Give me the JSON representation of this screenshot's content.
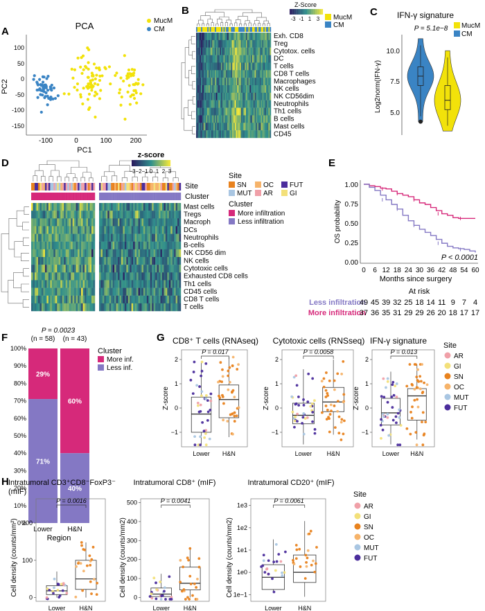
{
  "palette": {
    "mucm": "#f2e20a",
    "cm": "#3a84c4",
    "more_inf": "#d6297a",
    "less_inf": "#8478c4",
    "sites": {
      "AR": "#f0a0a8",
      "GI": "#f3e07a",
      "SN": "#e8821e",
      "OC": "#f6b36a",
      "MUT": "#a9c6e2",
      "FUT": "#4b2d9c"
    },
    "heat_low": "#2a1a5e",
    "heat_mid": "#2f8f8c",
    "heat_high": "#f2e63a"
  },
  "panels": {
    "A": {
      "letter": "A",
      "title": "PCA",
      "xlabel": "PC1",
      "ylabel": "PC2",
      "xticks": [
        "-100",
        "0",
        "100",
        "200"
      ],
      "yticks": [
        "100",
        "50",
        "0",
        "-50",
        "-100",
        "-150"
      ],
      "legend": [
        "MucM",
        "CM"
      ]
    },
    "B": {
      "letter": "B",
      "scale_title": "Z-Score",
      "scale_ticks": [
        "-3",
        "-1",
        "1",
        "3"
      ],
      "legend": [
        "MucM",
        "CM"
      ],
      "rows": [
        "Exh. CD8",
        "Treg",
        "Cytotox. cells",
        "DC",
        "T cells",
        "CD8 T cells",
        "Macrophages",
        "NK cells",
        "NK CD56dim",
        "Neutrophils",
        "Th1 cells",
        "B cells",
        "Mast cells",
        "CD45"
      ]
    },
    "C": {
      "letter": "C",
      "title": "IFN-γ signature",
      "pvalue": "P = 5.1e−8",
      "ylabel": "Log2norm(IFN-γ)",
      "yticks": [
        "10.0",
        "7.5",
        "5.0"
      ],
      "legend": [
        "MucM",
        "CM"
      ]
    },
    "D": {
      "letter": "D",
      "scale_title": "z-score",
      "scale_ticks": [
        "−3",
        "−2",
        "−1",
        "0",
        "1",
        "2",
        "3"
      ],
      "site_label": "Site",
      "cluster_label": "Cluster",
      "site_legend_title": "Site",
      "site_legend": [
        "SN",
        "OC",
        "FUT",
        "MUT",
        "AR",
        "GI"
      ],
      "cluster_legend_title": "Cluster",
      "cluster_legend": [
        "More infiltration",
        "Less infiltration"
      ],
      "rows": [
        "Mast cells",
        "Tregs",
        "Macroph",
        "DCs",
        "Neutrophils",
        "B-cells",
        "NK CD56 dim",
        "NK cells",
        "Cytotoxic cells",
        "Exhausted CD8 cells",
        "Th1 cells",
        "CD45 cells",
        "CD8 T cells",
        "T cells"
      ]
    },
    "E": {
      "letter": "E",
      "ylabel": "OS probability",
      "xlabel": "Months since surgery",
      "yticks": [
        "1.00",
        "0.75",
        "0.50",
        "0.25",
        "0.00"
      ],
      "xticks": [
        "0",
        "6",
        "12",
        "18",
        "24",
        "30",
        "36",
        "42",
        "48",
        "54",
        "60"
      ],
      "pvalue": "P < 0.0001",
      "at_risk": "At risk",
      "less_label": "Less infiltration",
      "more_label": "More infiltration",
      "less_counts": [
        "49",
        "45",
        "39",
        "32",
        "25",
        "18",
        "14",
        "11",
        "9",
        "7",
        "4"
      ],
      "more_counts": [
        "37",
        "36",
        "35",
        "31",
        "29",
        "29",
        "26",
        "20",
        "18",
        "17",
        "17"
      ]
    },
    "F": {
      "letter": "F",
      "pvalue": "P = 0.0023",
      "xlabel": "Region",
      "ns": [
        "(n = 58)",
        "(n = 43)"
      ],
      "categories": [
        "Lower",
        "H&N"
      ],
      "yticks": [
        "100%",
        "90%",
        "80%",
        "70%",
        "60%",
        "50%",
        "40%",
        "30%",
        "20%",
        "10%",
        "0%"
      ],
      "legend_title": "Cluster",
      "legend": [
        "More inf.",
        "Less inf."
      ],
      "labels_more": [
        "29%",
        "60%"
      ],
      "labels_less": [
        "71%",
        "40%"
      ]
    },
    "G": {
      "letter": "G",
      "ylabel": "Z-score",
      "categories": [
        "Lower",
        "H&N"
      ],
      "yticks": [
        "2",
        "1",
        "0",
        "−1"
      ],
      "titles": [
        "CD8⁺ T cells (RNAseq)",
        "Cytotoxic cells (RNSseq)",
        "IFN-γ signature"
      ],
      "pvalues": [
        "P = 0.017",
        "P = 0.0058",
        "P = 0.013"
      ],
      "site_title": "Site",
      "sites": [
        "AR",
        "GI",
        "SN",
        "OC",
        "MUT",
        "FUT"
      ]
    },
    "H": {
      "letter": "H",
      "ylabel": "Cell density (counts/mm²)",
      "ylabel2": "Cell density (counts/mm2)",
      "categories": [
        "Lower",
        "H&N"
      ],
      "titles": [
        "Intratumoral CD3⁺CD8⁻FoxP3⁻",
        "Intratumoral CD8⁺ (mIF)",
        "Intratumoral CD20⁺ (mIF)"
      ],
      "title_line2": "(mIF)",
      "pvalues": [
        "P = 0.0016",
        "P = 0.0041",
        "P = 0.0061"
      ],
      "yticks1": [
        "200",
        "100",
        "0"
      ],
      "yticks2": [
        "500",
        "400",
        "300",
        "200",
        "100",
        "0"
      ],
      "yticks3": [
        "1e3",
        "1e2",
        "1e1",
        "1e0",
        "1e−1"
      ],
      "site_title": "Site",
      "sites": [
        "AR",
        "GI",
        "SN",
        "OC",
        "MUT",
        "FUT"
      ]
    }
  },
  "chart_data": [
    {
      "type": "scatter",
      "panel": "A",
      "title": "PCA",
      "xlabel": "PC1",
      "ylabel": "PC2",
      "xlim": [
        -175,
        225
      ],
      "ylim": [
        -165,
        120
      ],
      "series": [
        {
          "name": "MucM",
          "clusters": [
            {
              "cx": 40,
              "cy": -10,
              "sx": 45,
              "sy": 55,
              "n": 75
            },
            {
              "cx": 175,
              "cy": 5,
              "sx": 25,
              "sy": 60,
              "n": 40
            }
          ]
        },
        {
          "name": "CM",
          "clusters": [
            {
              "cx": -115,
              "cy": -35,
              "sx": 22,
              "sy": 28,
              "n": 55
            }
          ]
        }
      ]
    },
    {
      "type": "violin",
      "panel": "C",
      "title": "IFN-γ signature",
      "ylabel": "Log2norm(IFN-γ)",
      "ylim": [
        4.0,
        11.5
      ],
      "series": [
        {
          "name": "CM",
          "median": 8.4,
          "q1": 7.7,
          "q3": 9.1,
          "min": 5.0,
          "max": 11.2
        },
        {
          "name": "MucM",
          "median": 6.6,
          "q1": 5.9,
          "q3": 7.7,
          "min": 4.3,
          "max": 10.3
        }
      ]
    },
    {
      "type": "line",
      "panel": "E",
      "xlabel": "Months since surgery",
      "ylabel": "OS probability",
      "xlim": [
        0,
        60
      ],
      "ylim": [
        0,
        1
      ],
      "series": [
        {
          "name": "More infiltration",
          "x": [
            0,
            3,
            6,
            9,
            12,
            15,
            18,
            21,
            24,
            27,
            30,
            33,
            36,
            39,
            42,
            45,
            48,
            51,
            54,
            57,
            60
          ],
          "y": [
            1.0,
            0.98,
            0.97,
            0.95,
            0.94,
            0.91,
            0.88,
            0.86,
            0.84,
            0.8,
            0.76,
            0.74,
            0.7,
            0.66,
            0.62,
            0.6,
            0.57,
            0.56,
            0.56,
            0.56,
            0.56
          ]
        },
        {
          "name": "Less infiltration",
          "x": [
            0,
            3,
            6,
            9,
            12,
            15,
            18,
            21,
            24,
            27,
            30,
            33,
            36,
            39,
            42,
            45,
            48,
            51,
            54,
            57,
            60
          ],
          "y": [
            1.0,
            0.96,
            0.92,
            0.86,
            0.8,
            0.74,
            0.68,
            0.6,
            0.53,
            0.47,
            0.42,
            0.38,
            0.34,
            0.29,
            0.24,
            0.2,
            0.18,
            0.17,
            0.16,
            0.14,
            0.12
          ]
        }
      ]
    },
    {
      "type": "bar",
      "panel": "F",
      "xlabel": "Region",
      "categories": [
        "Lower",
        "H&N"
      ],
      "series": [
        {
          "name": "More inf.",
          "values": [
            29,
            60
          ]
        },
        {
          "name": "Less inf.",
          "values": [
            71,
            40
          ]
        }
      ]
    },
    {
      "type": "box",
      "panel": "G1",
      "title": "CD8⁺ T cells (RNAseq)",
      "ylabel": "Z-score",
      "ylim": [
        -1.6,
        2.4
      ],
      "boxes": [
        {
          "category": "Lower",
          "min": -1.5,
          "q1": -1.0,
          "median": -0.25,
          "q3": 0.45,
          "max": 1.9
        },
        {
          "category": "H&N",
          "min": -1.2,
          "q1": -0.4,
          "median": 0.35,
          "q3": 0.95,
          "max": 2.1
        }
      ]
    },
    {
      "type": "box",
      "panel": "G2",
      "title": "Cytotoxic cells (RNSseq)",
      "ylabel": "Z-score",
      "ylim": [
        -1.6,
        2.4
      ],
      "boxes": [
        {
          "category": "Lower",
          "min": -1.5,
          "q1": -0.65,
          "median": -0.3,
          "q3": 0.2,
          "max": 1.6
        },
        {
          "category": "H&N",
          "min": -1.1,
          "q1": -0.15,
          "median": 0.25,
          "q3": 0.85,
          "max": 2.0
        }
      ]
    },
    {
      "type": "box",
      "panel": "G3",
      "title": "IFN-γ signature",
      "ylabel": "Z-score",
      "ylim": [
        -1.6,
        2.4
      ],
      "boxes": [
        {
          "category": "Lower",
          "min": -1.5,
          "q1": -0.7,
          "median": -0.2,
          "q3": 0.4,
          "max": 1.5
        },
        {
          "category": "H&N",
          "min": -1.3,
          "q1": -0.5,
          "median": 0.5,
          "q3": 0.8,
          "max": 1.8
        }
      ]
    },
    {
      "type": "box",
      "panel": "H1",
      "title": "Intratumoral CD3⁺CD8⁻FoxP3⁻ (mIF)",
      "ylim": [
        -10,
        265
      ],
      "boxes": [
        {
          "category": "Lower",
          "min": 0,
          "q1": 8,
          "median": 18,
          "q3": 32,
          "max": 70
        },
        {
          "category": "H&N",
          "min": 0,
          "q1": 22,
          "median": 50,
          "q3": 100,
          "max": 148
        }
      ]
    },
    {
      "type": "box",
      "panel": "H2",
      "title": "Intratumoral CD8⁺ (mIF)",
      "ylim": [
        -20,
        520
      ],
      "boxes": [
        {
          "category": "Lower",
          "min": 0,
          "q1": 5,
          "median": 18,
          "q3": 50,
          "max": 125
        },
        {
          "category": "H&N",
          "min": 0,
          "q1": 40,
          "median": 75,
          "q3": 160,
          "max": 265
        }
      ]
    },
    {
      "type": "box",
      "panel": "H3",
      "title": "Intratumoral CD20⁺ (mIF)",
      "yscale": "log",
      "ylim": [
        0.05,
        2000
      ],
      "boxes": [
        {
          "category": "Lower",
          "min": 0.12,
          "q1": 0.17,
          "median": 0.6,
          "q3": 2.2,
          "max": 30
        },
        {
          "category": "H&N",
          "min": 0.08,
          "q1": 0.35,
          "median": 1.0,
          "q3": 6.0,
          "max": 200
        }
      ]
    }
  ]
}
